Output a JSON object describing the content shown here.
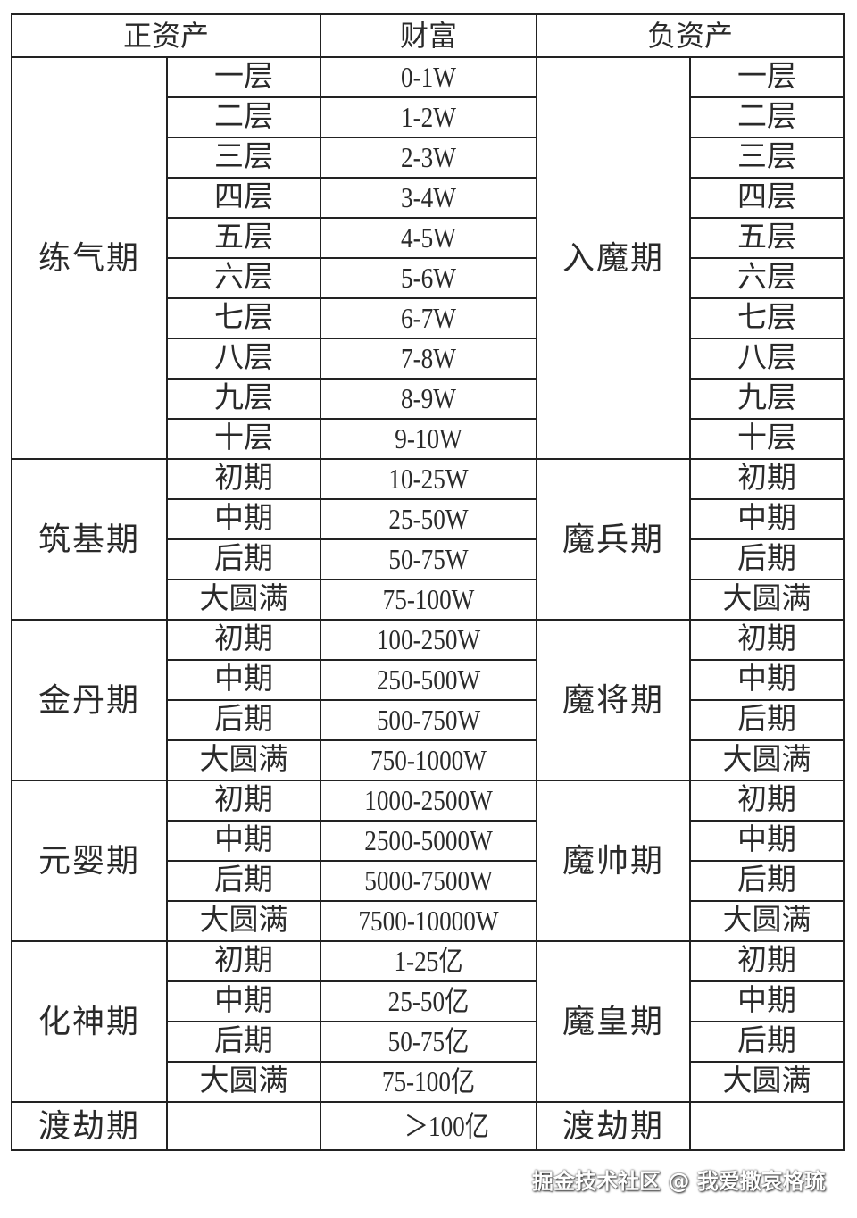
{
  "header": {
    "positive": "正资产",
    "wealth": "财富",
    "negative": "负资产"
  },
  "groups": [
    {
      "realm": "练气期",
      "neg_realm": "入魔期",
      "rows": [
        {
          "stage": "一层",
          "wealth": "0-1W",
          "neg_stage": "一层"
        },
        {
          "stage": "二层",
          "wealth": "1-2W",
          "neg_stage": "二层"
        },
        {
          "stage": "三层",
          "wealth": "2-3W",
          "neg_stage": "三层"
        },
        {
          "stage": "四层",
          "wealth": "3-4W",
          "neg_stage": "四层"
        },
        {
          "stage": "五层",
          "wealth": "4-5W",
          "neg_stage": "五层"
        },
        {
          "stage": "六层",
          "wealth": "5-6W",
          "neg_stage": "六层"
        },
        {
          "stage": "七层",
          "wealth": "6-7W",
          "neg_stage": "七层"
        },
        {
          "stage": "八层",
          "wealth": "7-8W",
          "neg_stage": "八层"
        },
        {
          "stage": "九层",
          "wealth": "8-9W",
          "neg_stage": "九层"
        },
        {
          "stage": "十层",
          "wealth": "9-10W",
          "neg_stage": "十层"
        }
      ]
    },
    {
      "realm": "筑基期",
      "neg_realm": "魔兵期",
      "rows": [
        {
          "stage": "初期",
          "wealth": "10-25W",
          "neg_stage": "初期"
        },
        {
          "stage": "中期",
          "wealth": "25-50W",
          "neg_stage": "中期"
        },
        {
          "stage": "后期",
          "wealth": "50-75W",
          "neg_stage": "后期"
        },
        {
          "stage": "大圆满",
          "wealth": "75-100W",
          "neg_stage": "大圆满"
        }
      ]
    },
    {
      "realm": "金丹期",
      "neg_realm": "魔将期",
      "rows": [
        {
          "stage": "初期",
          "wealth": "100-250W",
          "neg_stage": "初期"
        },
        {
          "stage": "中期",
          "wealth": "250-500W",
          "neg_stage": "中期"
        },
        {
          "stage": "后期",
          "wealth": "500-750W",
          "neg_stage": "后期"
        },
        {
          "stage": "大圆满",
          "wealth": "750-1000W",
          "neg_stage": "大圆满"
        }
      ]
    },
    {
      "realm": "元婴期",
      "neg_realm": "魔帅期",
      "rows": [
        {
          "stage": "初期",
          "wealth": "1000-2500W",
          "neg_stage": "初期"
        },
        {
          "stage": "中期",
          "wealth": "2500-5000W",
          "neg_stage": "中期"
        },
        {
          "stage": "后期",
          "wealth": "5000-7500W",
          "neg_stage": "后期"
        },
        {
          "stage": "大圆满",
          "wealth": "7500-10000W",
          "neg_stage": "大圆满"
        }
      ]
    },
    {
      "realm": "化神期",
      "neg_realm": "魔皇期",
      "rows": [
        {
          "stage": "初期",
          "wealth": "1-25亿",
          "neg_stage": "初期"
        },
        {
          "stage": "中期",
          "wealth": "25-50亿",
          "neg_stage": "中期"
        },
        {
          "stage": "后期",
          "wealth": "50-75亿",
          "neg_stage": "后期"
        },
        {
          "stage": "大圆满",
          "wealth": "75-100亿",
          "neg_stage": "大圆满"
        }
      ]
    }
  ],
  "last_row": {
    "realm": "渡劫期",
    "stage": "",
    "wealth": "＞100亿",
    "neg_realm": "渡劫期",
    "neg_stage": ""
  },
  "watermark": "掘金技术社区 @ 我爱撒哀格琉"
}
